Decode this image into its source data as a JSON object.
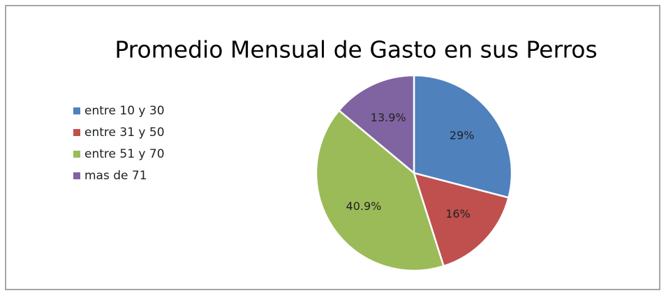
{
  "chart_data": {
    "type": "pie",
    "title": "Promedio Mensual de Gasto en sus Perros",
    "categories": [
      "entre 10 y 30",
      "entre 31 y 50",
      "entre 51 y 70",
      "mas de 71"
    ],
    "values": [
      29,
      16,
      40.9,
      13.9
    ],
    "value_labels": [
      "29%",
      "16%",
      "40.9%",
      "13.9%"
    ],
    "colors": [
      "#4f81bd",
      "#c0504d",
      "#9bbb59",
      "#8064a2"
    ],
    "legend": "left"
  }
}
